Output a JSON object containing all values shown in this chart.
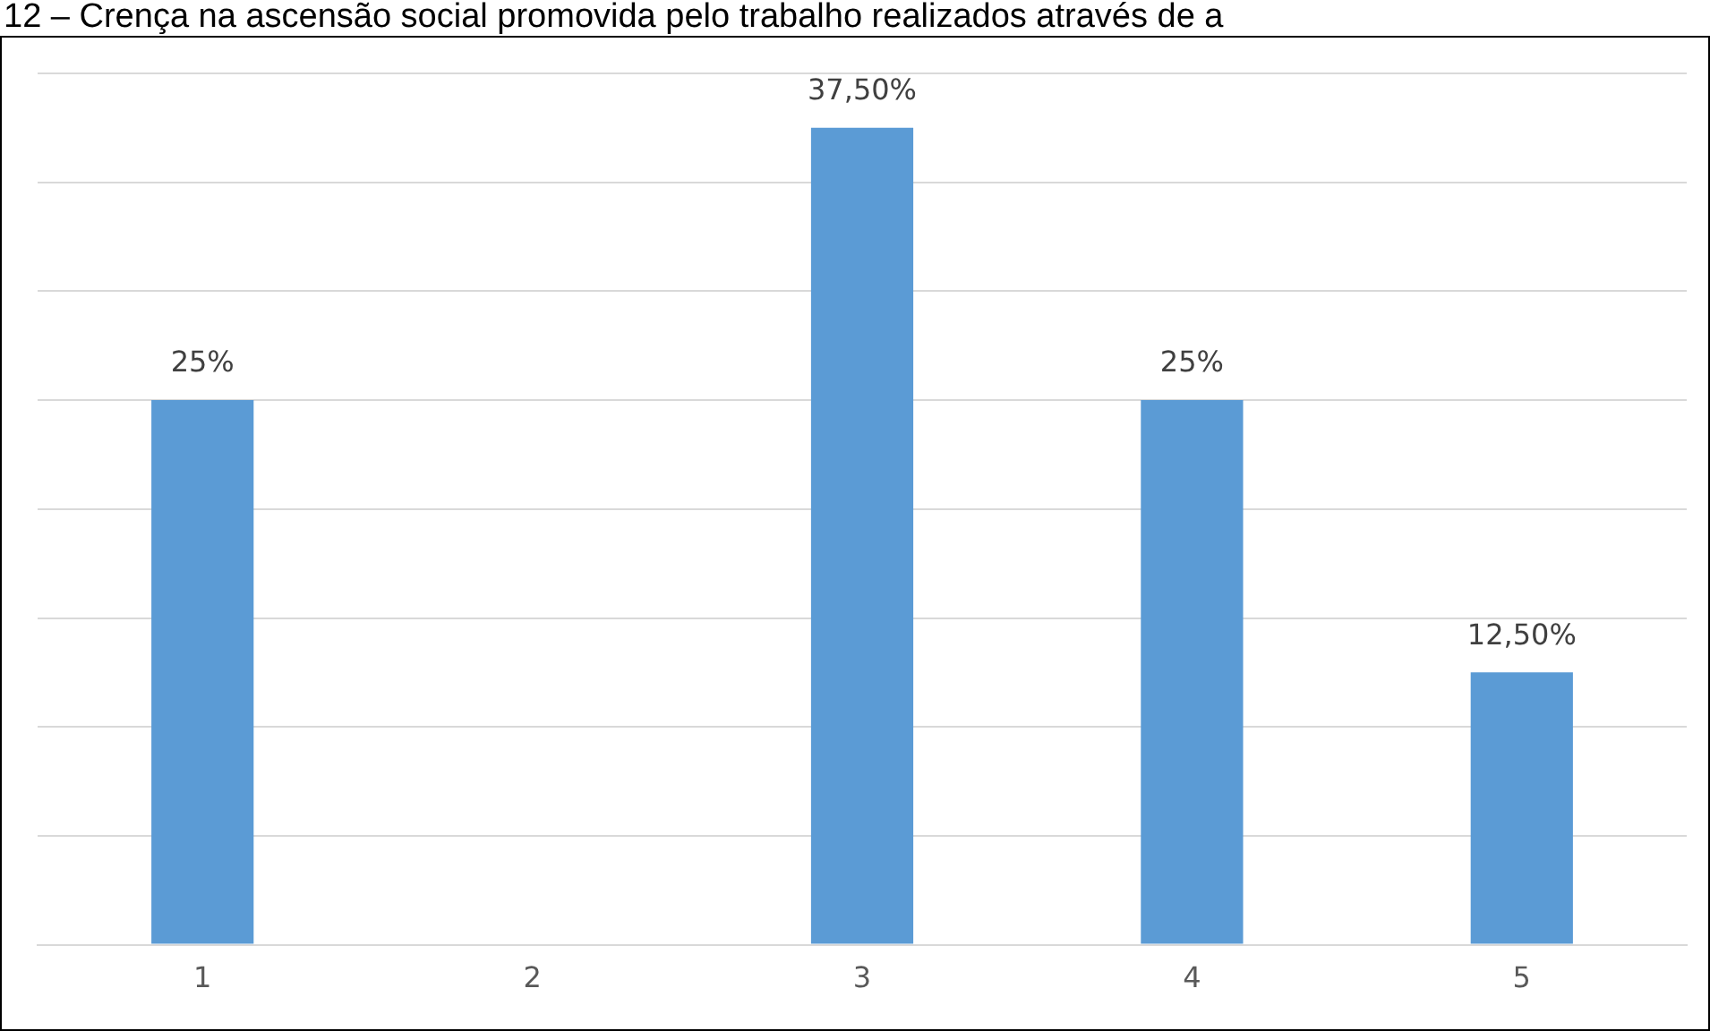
{
  "chart_data": {
    "type": "bar",
    "title": "12 – Crença na ascensão social promovida pelo trabalho realizados através de a",
    "categories": [
      "1",
      "2",
      "3",
      "4",
      "5"
    ],
    "values": [
      25,
      0,
      37.5,
      25,
      12.5
    ],
    "value_labels": [
      "25%",
      null,
      "37,50%",
      "25%",
      "12,50%"
    ],
    "color": "#5b9bd5",
    "ylim": [
      0,
      40
    ],
    "yticks": [
      {
        "value": 0,
        "label": null
      },
      {
        "value": 5,
        "label": null
      },
      {
        "value": 10,
        "label": null
      },
      {
        "value": 15,
        "label": null
      },
      {
        "value": 20,
        "label": null
      },
      {
        "value": 25,
        "label": null
      },
      {
        "value": 30,
        "label": null
      },
      {
        "value": 35,
        "label": null
      },
      {
        "value": 40,
        "label": null
      }
    ],
    "tick_labels": "x",
    "grid": "y",
    "legend": false
  }
}
